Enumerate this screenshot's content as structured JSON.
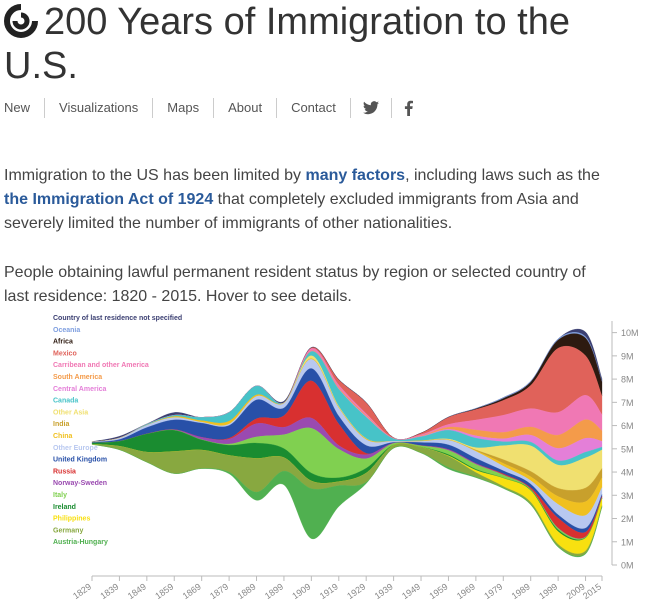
{
  "header": {
    "title": "200 Years of Immigration to the U.S."
  },
  "nav": {
    "items": [
      "New",
      "Visualizations",
      "Maps",
      "About",
      "Contact"
    ]
  },
  "intro": {
    "segments": [
      "Immigration to the US has been limited by ",
      "many factors",
      ", including laws such as the ",
      "the Immigration Act of 1924",
      " that completely excluded immigrants from Asia and severely limited the number of immigrants of other nationalities."
    ]
  },
  "caption": "People obtaining lawful permanent resident status by region or selected country of last residence: 1820 - 2015. Hover to see details.",
  "chart_data": {
    "type": "streamgraph",
    "x": [
      1829,
      1839,
      1849,
      1859,
      1869,
      1879,
      1889,
      1899,
      1909,
      1919,
      1929,
      1939,
      1949,
      1959,
      1969,
      1979,
      1989,
      1999,
      2009,
      2015
    ],
    "xlim": [
      1829,
      2015
    ],
    "xticks": [
      1829,
      1839,
      1849,
      1859,
      1869,
      1879,
      1889,
      1899,
      1909,
      1919,
      1929,
      1939,
      1949,
      1959,
      1969,
      1979,
      1989,
      1999,
      2009,
      2015
    ],
    "ylim": [
      0,
      10.5
    ],
    "yticks": [
      {
        "value": 0,
        "label": "0M"
      },
      {
        "value": 1,
        "label": "1M"
      },
      {
        "value": 2,
        "label": "2M"
      },
      {
        "value": 3,
        "label": "3M"
      },
      {
        "value": 4,
        "label": "4M"
      },
      {
        "value": 5,
        "label": "5M"
      },
      {
        "value": 6,
        "label": "6M"
      },
      {
        "value": 7,
        "label": "7M"
      },
      {
        "value": 8,
        "label": "8M"
      },
      {
        "value": 9,
        "label": "9M"
      },
      {
        "value": 10,
        "label": "10M"
      }
    ],
    "series": [
      {
        "name": "Country of last residence not specified",
        "color": "#3b3f72",
        "values": [
          0.02,
          0.07,
          0.02,
          0.12,
          0,
          0,
          0,
          0.07,
          0,
          0,
          0,
          0,
          0,
          0,
          0,
          0,
          0,
          0,
          0.2,
          0.1
        ]
      },
      {
        "name": "Oceania",
        "color": "#7f9fe0",
        "values": [
          0,
          0,
          0,
          0,
          0,
          0.01,
          0.01,
          0,
          0.01,
          0.01,
          0.01,
          0,
          0,
          0.01,
          0.02,
          0.04,
          0.04,
          0.05,
          0.06,
          0.04
        ]
      },
      {
        "name": "Africa",
        "color": "#2d1a10",
        "values": [
          0,
          0,
          0,
          0,
          0,
          0,
          0,
          0,
          0.01,
          0.01,
          0.01,
          0,
          0.01,
          0.01,
          0.03,
          0.08,
          0.14,
          0.35,
          0.76,
          0.6
        ]
      },
      {
        "name": "Mexico",
        "color": "#e0625a",
        "values": [
          0,
          0,
          0,
          0,
          0,
          0,
          0,
          0,
          0.03,
          0.22,
          0.46,
          0.02,
          0.06,
          0.3,
          0.45,
          0.64,
          1.0,
          2.76,
          1.7,
          0.8
        ]
      },
      {
        "name": "Carribean and other America",
        "color": "#f078b4",
        "values": [
          0,
          0,
          0,
          0,
          0,
          0,
          0,
          0,
          0.1,
          0.12,
          0.08,
          0.01,
          0.05,
          0.12,
          0.43,
          0.74,
          0.79,
          0.98,
          1.05,
          0.7
        ]
      },
      {
        "name": "South America",
        "color": "#f49b4a",
        "values": [
          0,
          0,
          0,
          0,
          0,
          0,
          0,
          0,
          0.02,
          0.04,
          0.04,
          0,
          0.02,
          0.09,
          0.25,
          0.27,
          0.35,
          0.57,
          0.8,
          0.45
        ]
      },
      {
        "name": "Central America",
        "color": "#e47fd8",
        "values": [
          0,
          0,
          0,
          0,
          0,
          0,
          0,
          0,
          0.01,
          0.02,
          0.03,
          0.01,
          0.02,
          0.04,
          0.1,
          0.13,
          0.3,
          0.53,
          0.6,
          0.25
        ]
      },
      {
        "name": "Canada",
        "color": "#47c3c8",
        "values": [
          0,
          0.01,
          0.04,
          0.06,
          0.15,
          0.38,
          0.39,
          0.003,
          0.18,
          0.74,
          0.92,
          0.11,
          0.17,
          0.38,
          0.41,
          0.17,
          0.16,
          0.19,
          0.24,
          0.12
        ]
      },
      {
        "name": "Other Asia",
        "color": "#f0e070",
        "values": [
          0,
          0,
          0,
          0,
          0,
          0,
          0,
          0.01,
          0.13,
          0.05,
          0.02,
          0,
          0.01,
          0.04,
          0.1,
          0.6,
          1.1,
          1.0,
          1.3,
          0.8
        ]
      },
      {
        "name": "India",
        "color": "#c8a02c",
        "values": [
          0,
          0,
          0,
          0,
          0,
          0,
          0,
          0,
          0,
          0,
          0,
          0,
          0,
          0,
          0.03,
          0.16,
          0.23,
          0.35,
          0.59,
          0.4
        ]
      },
      {
        "name": "China",
        "color": "#f0c020",
        "values": [
          0,
          0,
          0,
          0.04,
          0.06,
          0.12,
          0.06,
          0.01,
          0.02,
          0.02,
          0.03,
          0,
          0.02,
          0.01,
          0.03,
          0.12,
          0.17,
          0.34,
          0.59,
          0.42
        ]
      },
      {
        "name": "Other Europe",
        "color": "#b8c8f0",
        "values": [
          0.01,
          0.06,
          0.1,
          0.1,
          0.04,
          0.06,
          0.15,
          0.2,
          0.4,
          0.35,
          0.25,
          0.05,
          0.05,
          0.2,
          0.3,
          0.2,
          0.15,
          0.45,
          0.55,
          0.3
        ]
      },
      {
        "name": "United Kingdom",
        "color": "#2850a8",
        "values": [
          0.03,
          0.08,
          0.27,
          0.42,
          0.61,
          0.55,
          0.81,
          0.33,
          0.53,
          0.34,
          0.34,
          0.03,
          0.13,
          0.2,
          0.22,
          0.13,
          0.15,
          0.14,
          0.17,
          0.08
        ]
      },
      {
        "name": "Russia",
        "color": "#d83030",
        "values": [
          0,
          0,
          0,
          0,
          0,
          0.04,
          0.21,
          0.5,
          1.6,
          0.92,
          0.06,
          0,
          0,
          0,
          0,
          0.04,
          0.06,
          0.43,
          0.2,
          0.06
        ]
      },
      {
        "name": "Norway-Sweden",
        "color": "#9a4ab0",
        "values": [
          0,
          0,
          0.01,
          0.02,
          0.1,
          0.21,
          0.57,
          0.32,
          0.44,
          0.16,
          0.17,
          0.01,
          0.01,
          0.04,
          0.04,
          0.01,
          0.01,
          0.01,
          0.01,
          0.01
        ]
      },
      {
        "name": "Italy",
        "color": "#80d050",
        "values": [
          0,
          0,
          0,
          0.01,
          0.01,
          0.05,
          0.27,
          0.6,
          1.93,
          1.23,
          0.41,
          0.07,
          0.06,
          0.18,
          0.21,
          0.13,
          0.03,
          0.07,
          0.03,
          0.02
        ]
      },
      {
        "name": "Ireland",
        "color": "#1a8c30",
        "values": [
          0.05,
          0.21,
          0.78,
          0.91,
          0.44,
          0.44,
          0.66,
          0.39,
          0.34,
          0.17,
          0.21,
          0.01,
          0.01,
          0.05,
          0.04,
          0.01,
          0.03,
          0.07,
          0.02,
          0.01
        ]
      },
      {
        "name": "Philippines",
        "color": "#f8e010",
        "values": [
          0,
          0,
          0,
          0,
          0,
          0,
          0,
          0,
          0,
          0,
          0,
          0,
          0,
          0.02,
          0.1,
          0.35,
          0.5,
          0.55,
          0.55,
          0.3
        ]
      },
      {
        "name": "Germany",
        "color": "#88a840",
        "values": [
          0.01,
          0.15,
          0.43,
          0.95,
          0.79,
          0.72,
          1.45,
          0.58,
          0.33,
          0.17,
          0.39,
          0.12,
          0.23,
          0.48,
          0.19,
          0.07,
          0.09,
          0.09,
          0.1,
          0.05
        ]
      },
      {
        "name": "Austria-Hungary",
        "color": "#50b050",
        "values": [
          0,
          0,
          0,
          0,
          0.01,
          0.07,
          0.35,
          0.59,
          2.15,
          0.9,
          0.06,
          0.01,
          0.01,
          0.07,
          0.03,
          0.02,
          0.02,
          0.03,
          0.03,
          0.02
        ]
      }
    ]
  }
}
